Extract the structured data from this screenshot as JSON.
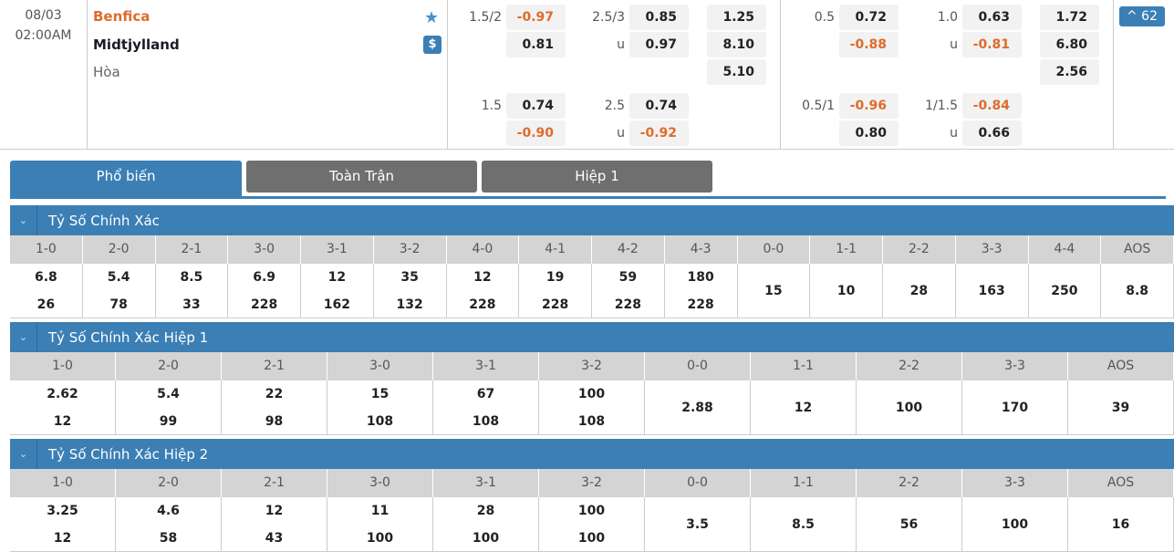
{
  "match": {
    "date": "08/03",
    "time": "02:00AM",
    "home": "Benfica",
    "away": "Midtjylland",
    "draw": "Hòa",
    "home_color": "#e06b2a",
    "more_count": "^ 62",
    "icons": [
      "star-icon",
      "dollar-icon"
    ]
  },
  "odds": [
    {
      "label": "1.5/2",
      "v1": "-0.97",
      "v2": "0.81",
      "col": 0,
      "row": 0
    },
    {
      "label": "2.5/3",
      "l2": "u",
      "v1": "0.85",
      "v2": "0.97",
      "col": 1,
      "row": 0
    },
    {
      "v1": "1.25",
      "v2": "8.10",
      "v3": "5.10",
      "col": 2,
      "row": 0
    },
    {
      "label": "1.5",
      "v1": "0.74",
      "v2": "-0.90",
      "col": 0,
      "row": 1
    },
    {
      "label": "2.5",
      "l2": "u",
      "v1": "0.74",
      "v2": "-0.92",
      "col": 1,
      "row": 1
    },
    {
      "label": "0.5",
      "v1": "0.72",
      "v2": "-0.88",
      "col": 3,
      "row": 0
    },
    {
      "label": "1.0",
      "l2": "u",
      "v1": "0.63",
      "v2": "-0.81",
      "col": 4,
      "row": 0
    },
    {
      "v1": "1.72",
      "v2": "6.80",
      "v3": "2.56",
      "col": 5,
      "row": 0
    },
    {
      "label": "0.5/1",
      "v1": "-0.96",
      "v2": "0.80",
      "col": 3,
      "row": 1
    },
    {
      "label": "1/1.5",
      "l2": "u",
      "v1": "-0.84",
      "v2": "0.66",
      "col": 4,
      "row": 1
    }
  ],
  "tabs": [
    {
      "label": "Phổ biến",
      "active": true
    },
    {
      "label": "Toàn Trận"
    },
    {
      "label": "Hiệp 1"
    }
  ],
  "colors": {
    "accent": "#3b7fb5",
    "negative": "#e06b2a",
    "tab_inactive": "#6f6f6f"
  },
  "sections": [
    {
      "title": "Tỷ Số Chính Xác",
      "headers": [
        "1-0",
        "2-0",
        "2-1",
        "3-0",
        "3-1",
        "3-2",
        "4-0",
        "4-1",
        "4-2",
        "4-3",
        "0-0",
        "1-1",
        "2-2",
        "3-3",
        "4-4",
        "AOS"
      ],
      "values": [
        [
          "6.8",
          "26"
        ],
        [
          "5.4",
          "78"
        ],
        [
          "8.5",
          "33"
        ],
        [
          "6.9",
          "228"
        ],
        [
          "12",
          "162"
        ],
        [
          "35",
          "132"
        ],
        [
          "12",
          "228"
        ],
        [
          "19",
          "228"
        ],
        [
          "59",
          "228"
        ],
        [
          "180",
          "228"
        ],
        [
          "15"
        ],
        [
          "10"
        ],
        [
          "28"
        ],
        [
          "163"
        ],
        [
          "250"
        ],
        [
          "8.8"
        ]
      ]
    },
    {
      "title": "Tỷ Số Chính Xác Hiệp 1",
      "headers": [
        "1-0",
        "2-0",
        "2-1",
        "3-0",
        "3-1",
        "3-2",
        "0-0",
        "1-1",
        "2-2",
        "3-3",
        "AOS"
      ],
      "values": [
        [
          "2.62",
          "12"
        ],
        [
          "5.4",
          "99"
        ],
        [
          "22",
          "98"
        ],
        [
          "15",
          "108"
        ],
        [
          "67",
          "108"
        ],
        [
          "100",
          "108"
        ],
        [
          "2.88"
        ],
        [
          "12"
        ],
        [
          "100"
        ],
        [
          "170"
        ],
        [
          "39"
        ]
      ]
    },
    {
      "title": "Tỷ Số Chính Xác Hiệp 2",
      "headers": [
        "1-0",
        "2-0",
        "2-1",
        "3-0",
        "3-1",
        "3-2",
        "0-0",
        "1-1",
        "2-2",
        "3-3",
        "AOS"
      ],
      "values": [
        [
          "3.25",
          "12"
        ],
        [
          "4.6",
          "58"
        ],
        [
          "12",
          "43"
        ],
        [
          "11",
          "100"
        ],
        [
          "28",
          "100"
        ],
        [
          "100",
          "100"
        ],
        [
          "3.5"
        ],
        [
          "8.5"
        ],
        [
          "56"
        ],
        [
          "100"
        ],
        [
          "16"
        ]
      ]
    }
  ]
}
